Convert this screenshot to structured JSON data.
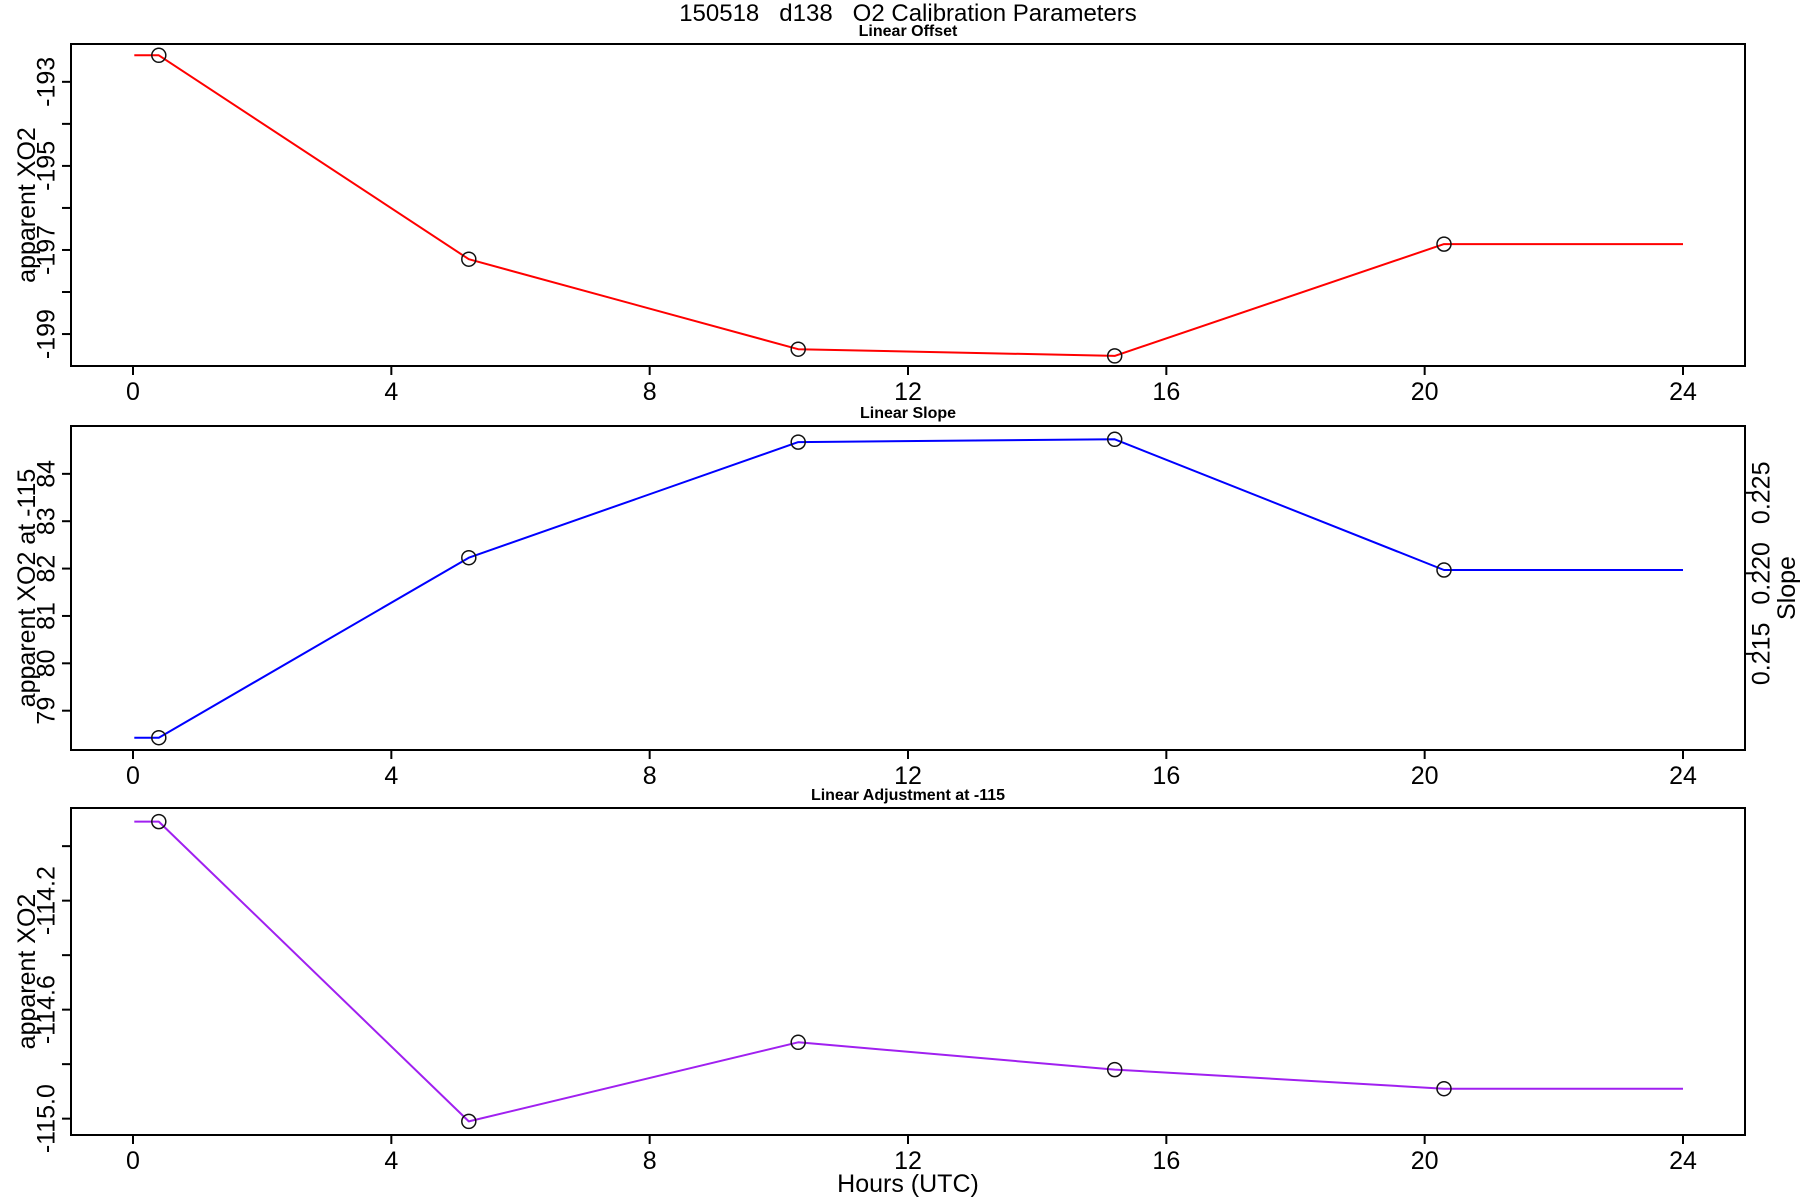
{
  "title": "150518   d138   O2 Calibration Parameters",
  "xlabel": "Hours (UTC)",
  "chart_data": [
    {
      "type": "line",
      "title": "Linear Offset",
      "ylabel": "apparent XO2",
      "line_color": "#FF0000",
      "marker_color": "#111111",
      "x": [
        0.4,
        5.2,
        10.3,
        15.2,
        20.3
      ],
      "y": [
        -192.37,
        -197.22,
        -199.36,
        -199.52,
        -196.86
      ],
      "line_x": [
        0.02,
        0.4,
        5.2,
        10.3,
        15.2,
        20.3,
        24.0
      ],
      "line_y": [
        -192.37,
        -192.37,
        -197.22,
        -199.36,
        -199.52,
        -196.86,
        -196.86
      ],
      "xlim": [
        -0.96,
        24.96
      ],
      "ylim": [
        -199.76,
        -192.1
      ],
      "xticks": [
        {
          "v": 0,
          "label": "0"
        },
        {
          "v": 4,
          "label": "4"
        },
        {
          "v": 8,
          "label": "8"
        },
        {
          "v": 12,
          "label": "12"
        },
        {
          "v": 16,
          "label": "16"
        },
        {
          "v": 20,
          "label": "20"
        },
        {
          "v": 24,
          "label": "24"
        }
      ],
      "yticks": [
        {
          "v": -193,
          "label": "-193"
        },
        {
          "v": -194
        },
        {
          "v": -195,
          "label": "-195"
        },
        {
          "v": -196
        },
        {
          "v": -197,
          "label": "-197"
        },
        {
          "v": -198
        },
        {
          "v": -199,
          "label": "-199"
        }
      ]
    },
    {
      "type": "line",
      "title": "Linear Slope",
      "ylabel": "apparent XO2 at -115",
      "y2label": "Slope",
      "line_color": "#0000FF",
      "marker_color": "#111111",
      "x": [
        0.4,
        5.2,
        10.3,
        15.2,
        20.3
      ],
      "y": [
        78.43,
        82.23,
        84.67,
        84.73,
        81.97
      ],
      "line_x": [
        0.02,
        0.4,
        5.2,
        10.3,
        15.2,
        20.3,
        24.0
      ],
      "line_y": [
        78.43,
        78.43,
        82.23,
        84.67,
        84.73,
        81.97,
        81.97
      ],
      "xlim": [
        -0.96,
        24.96
      ],
      "ylim": [
        78.17,
        85.01
      ],
      "xticks": [
        {
          "v": 0,
          "label": "0"
        },
        {
          "v": 4,
          "label": "4"
        },
        {
          "v": 8,
          "label": "8"
        },
        {
          "v": 12,
          "label": "12"
        },
        {
          "v": 16,
          "label": "16"
        },
        {
          "v": 20,
          "label": "20"
        },
        {
          "v": 24,
          "label": "24"
        }
      ],
      "yticks": [
        {
          "v": 79,
          "label": "79"
        },
        {
          "v": 80,
          "label": "80"
        },
        {
          "v": 81,
          "label": "81"
        },
        {
          "v": 82,
          "label": "82"
        },
        {
          "v": 83,
          "label": "83"
        },
        {
          "v": 84,
          "label": "84"
        }
      ],
      "y2ticks": [
        {
          "v": 80.2,
          "label": "0.215"
        },
        {
          "v": 81.9,
          "label": "0.220"
        },
        {
          "v": 83.6,
          "label": "0.225"
        }
      ]
    },
    {
      "type": "line",
      "title": "Linear Adjustment at -115",
      "ylabel": "apparent XO2",
      "line_color": "#A020F0",
      "marker_color": "#111111",
      "x": [
        0.4,
        5.2,
        10.3,
        15.2,
        20.3
      ],
      "y": [
        -113.91,
        -115.01,
        -114.72,
        -114.82,
        -114.89
      ],
      "line_x": [
        0.02,
        0.4,
        5.2,
        10.3,
        15.2,
        20.3,
        24.0
      ],
      "line_y": [
        -113.91,
        -113.91,
        -115.01,
        -114.72,
        -114.82,
        -114.89,
        -114.89
      ],
      "xlim": [
        -0.96,
        24.96
      ],
      "ylim": [
        -115.06,
        -113.86
      ],
      "xticks": [
        {
          "v": 0,
          "label": "0"
        },
        {
          "v": 4,
          "label": "4"
        },
        {
          "v": 8,
          "label": "8"
        },
        {
          "v": 12,
          "label": "12"
        },
        {
          "v": 16,
          "label": "16"
        },
        {
          "v": 20,
          "label": "20"
        },
        {
          "v": 24,
          "label": "24"
        }
      ],
      "yticks": [
        {
          "v": -114.0
        },
        {
          "v": -114.2,
          "label": "-114.2"
        },
        {
          "v": -114.4
        },
        {
          "v": -114.6,
          "label": "-114.6"
        },
        {
          "v": -114.8
        },
        {
          "v": -115.0,
          "label": "-115.0"
        }
      ]
    }
  ]
}
